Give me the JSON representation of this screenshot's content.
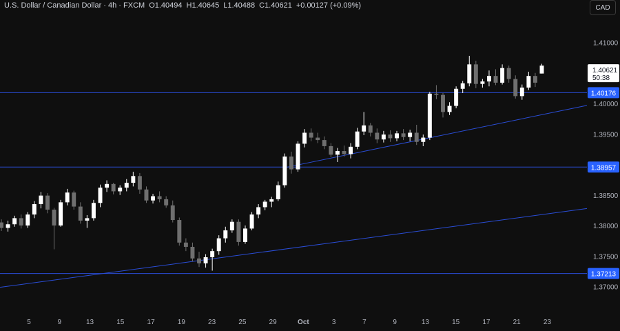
{
  "header": {
    "symbol": "U.S. Dollar / Canadian Dollar · 4h · FXCM",
    "open": "O1.40494",
    "high": "H1.40645",
    "low": "L1.40488",
    "close": "C1.40621",
    "change": "+0.00127 (+0.09%)"
  },
  "currency_button": "CAD",
  "colors": {
    "background": "#0f0f0f",
    "bull": "#ffffff",
    "bear": "#6f6f6f",
    "line": "#2a4dd6",
    "label_bg": "#2962ff",
    "price_label_bg": "#ffffff"
  },
  "chart_data": {
    "type": "candlestick",
    "y_ticks": [
      "1.41000",
      "1.40000",
      "1.39500",
      "1.38500",
      "1.38000",
      "1.37500",
      "1.37000"
    ],
    "y_tick_values": [
      1.41,
      1.4,
      1.395,
      1.385,
      1.38,
      1.375,
      1.37
    ],
    "ylim": [
      1.3695,
      1.4132
    ],
    "x_ticks": [
      "5",
      "9",
      "13",
      "15",
      "17",
      "19",
      "23",
      "25",
      "29",
      "Oct",
      "3",
      "7",
      "9",
      "13",
      "15",
      "17",
      "21",
      "23"
    ],
    "x_tick_days": [
      5,
      9,
      13,
      17,
      21,
      25,
      29,
      33,
      37,
      41,
      45,
      49,
      53,
      57,
      61,
      65,
      69,
      73
    ],
    "xlim": [
      1.2,
      78.2
    ],
    "horizontal_levels": [
      {
        "label": "1.40176",
        "value": 1.40176
      },
      {
        "label": "1.38957",
        "value": 1.38957
      },
      {
        "label": "1.37213",
        "value": 1.37213
      }
    ],
    "trendlines": [
      {
        "x": [
          38.9,
          78.2
        ],
        "y": [
          1.38957,
          1.39967
        ]
      },
      {
        "x": [
          1.2,
          78.2
        ],
        "y": [
          1.36987,
          1.38278
        ]
      }
    ],
    "current_price": "1.40621",
    "countdown": "50:38",
    "candles": [
      [
        1.3805,
        1.381,
        1.3791,
        1.3796
      ],
      [
        1.3796,
        1.3808,
        1.379,
        1.3802
      ],
      [
        1.3802,
        1.3816,
        1.3798,
        1.3812
      ],
      [
        1.3812,
        1.3818,
        1.3795,
        1.38
      ],
      [
        1.38,
        1.3822,
        1.3796,
        1.3818
      ],
      [
        1.3818,
        1.384,
        1.3812,
        1.3835
      ],
      [
        1.3835,
        1.3855,
        1.3828,
        1.3849
      ],
      [
        1.3849,
        1.3853,
        1.382,
        1.3826
      ],
      [
        1.3826,
        1.3829,
        1.3761,
        1.38
      ],
      [
        1.38,
        1.3842,
        1.3798,
        1.3838
      ],
      [
        1.3838,
        1.386,
        1.3833,
        1.3854
      ],
      [
        1.3854,
        1.3857,
        1.3826,
        1.3831
      ],
      [
        1.3831,
        1.3838,
        1.3803,
        1.3808
      ],
      [
        1.3808,
        1.3817,
        1.3796,
        1.3812
      ],
      [
        1.3812,
        1.3842,
        1.3808,
        1.3837
      ],
      [
        1.3837,
        1.3867,
        1.383,
        1.3862
      ],
      [
        1.3862,
        1.3874,
        1.3855,
        1.3868
      ],
      [
        1.3868,
        1.387,
        1.3851,
        1.3856
      ],
      [
        1.3856,
        1.3866,
        1.385,
        1.3862
      ],
      [
        1.3862,
        1.3876,
        1.3856,
        1.387
      ],
      [
        1.387,
        1.3888,
        1.3864,
        1.3881
      ],
      [
        1.3881,
        1.3886,
        1.3852,
        1.3859
      ],
      [
        1.3859,
        1.3864,
        1.3837,
        1.3841
      ],
      [
        1.3841,
        1.3852,
        1.3836,
        1.3848
      ],
      [
        1.3848,
        1.3856,
        1.3838,
        1.3843
      ],
      [
        1.3843,
        1.3848,
        1.3829,
        1.3833
      ],
      [
        1.3833,
        1.3841,
        1.3805,
        1.3809
      ],
      [
        1.3809,
        1.3813,
        1.3767,
        1.3772
      ],
      [
        1.3772,
        1.3779,
        1.3758,
        1.3765
      ],
      [
        1.3765,
        1.3772,
        1.3741,
        1.3746
      ],
      [
        1.3746,
        1.3757,
        1.3732,
        1.3738
      ],
      [
        1.3738,
        1.3753,
        1.3731,
        1.3748
      ],
      [
        1.3748,
        1.3762,
        1.3726,
        1.3758
      ],
      [
        1.3758,
        1.3784,
        1.3752,
        1.3779
      ],
      [
        1.3779,
        1.3798,
        1.3772,
        1.3792
      ],
      [
        1.3792,
        1.381,
        1.3788,
        1.3806
      ],
      [
        1.3806,
        1.381,
        1.3767,
        1.3773
      ],
      [
        1.3773,
        1.38,
        1.377,
        1.3795
      ],
      [
        1.3795,
        1.3822,
        1.3792,
        1.3818
      ],
      [
        1.3818,
        1.3835,
        1.3812,
        1.383
      ],
      [
        1.383,
        1.3842,
        1.3825,
        1.3839
      ],
      [
        1.3839,
        1.3847,
        1.383,
        1.3843
      ],
      [
        1.3843,
        1.3872,
        1.384,
        1.3866
      ],
      [
        1.3866,
        1.3918,
        1.3862,
        1.3913
      ],
      [
        1.3913,
        1.3921,
        1.3885,
        1.3892
      ],
      [
        1.3892,
        1.3938,
        1.3888,
        1.3934
      ],
      [
        1.3934,
        1.3958,
        1.3928,
        1.3952
      ],
      [
        1.3952,
        1.3959,
        1.3938,
        1.3944
      ],
      [
        1.3944,
        1.3952,
        1.3935,
        1.394
      ],
      [
        1.394,
        1.3946,
        1.3925,
        1.393
      ],
      [
        1.393,
        1.3935,
        1.3912,
        1.3916
      ],
      [
        1.3916,
        1.3927,
        1.3904,
        1.3922
      ],
      [
        1.3922,
        1.3931,
        1.3913,
        1.3917
      ],
      [
        1.3917,
        1.3935,
        1.391,
        1.3929
      ],
      [
        1.3929,
        1.396,
        1.3925,
        1.3954
      ],
      [
        1.3954,
        1.3986,
        1.3948,
        1.3964
      ],
      [
        1.3964,
        1.3968,
        1.3946,
        1.3952
      ],
      [
        1.3952,
        1.3959,
        1.3935,
        1.3941
      ],
      [
        1.3941,
        1.3955,
        1.3936,
        1.3949
      ],
      [
        1.3949,
        1.3956,
        1.3937,
        1.3943
      ],
      [
        1.3943,
        1.3955,
        1.3938,
        1.3951
      ],
      [
        1.3951,
        1.3958,
        1.394,
        1.3945
      ],
      [
        1.3945,
        1.3957,
        1.3938,
        1.3952
      ],
      [
        1.3952,
        1.3965,
        1.3932,
        1.3937
      ],
      [
        1.3937,
        1.3949,
        1.393,
        1.3944
      ],
      [
        1.3944,
        1.4019,
        1.394,
        1.4016
      ],
      [
        1.4016,
        1.403,
        1.4007,
        1.4014
      ],
      [
        1.4014,
        1.4017,
        1.3977,
        1.3986
      ],
      [
        1.3986,
        1.4002,
        1.3981,
        1.3996
      ],
      [
        1.3996,
        1.4028,
        1.3992,
        1.4024
      ],
      [
        1.4024,
        1.4037,
        1.4017,
        1.4033
      ],
      [
        1.4033,
        1.4078,
        1.4028,
        1.4064
      ],
      [
        1.4064,
        1.407,
        1.4025,
        1.4032
      ],
      [
        1.4032,
        1.404,
        1.4026,
        1.4036
      ],
      [
        1.4036,
        1.4054,
        1.4028,
        1.4045
      ],
      [
        1.4045,
        1.4056,
        1.403,
        1.4034
      ],
      [
        1.4034,
        1.4064,
        1.4031,
        1.4058
      ],
      [
        1.4058,
        1.4062,
        1.4034,
        1.404
      ],
      [
        1.404,
        1.4046,
        1.4008,
        1.4012
      ],
      [
        1.4012,
        1.4031,
        1.4006,
        1.4026
      ],
      [
        1.4026,
        1.4052,
        1.4022,
        1.4045
      ],
      [
        1.4045,
        1.405,
        1.4027,
        1.4034
      ],
      [
        1.4049,
        1.4065,
        1.4049,
        1.4062
      ]
    ]
  }
}
